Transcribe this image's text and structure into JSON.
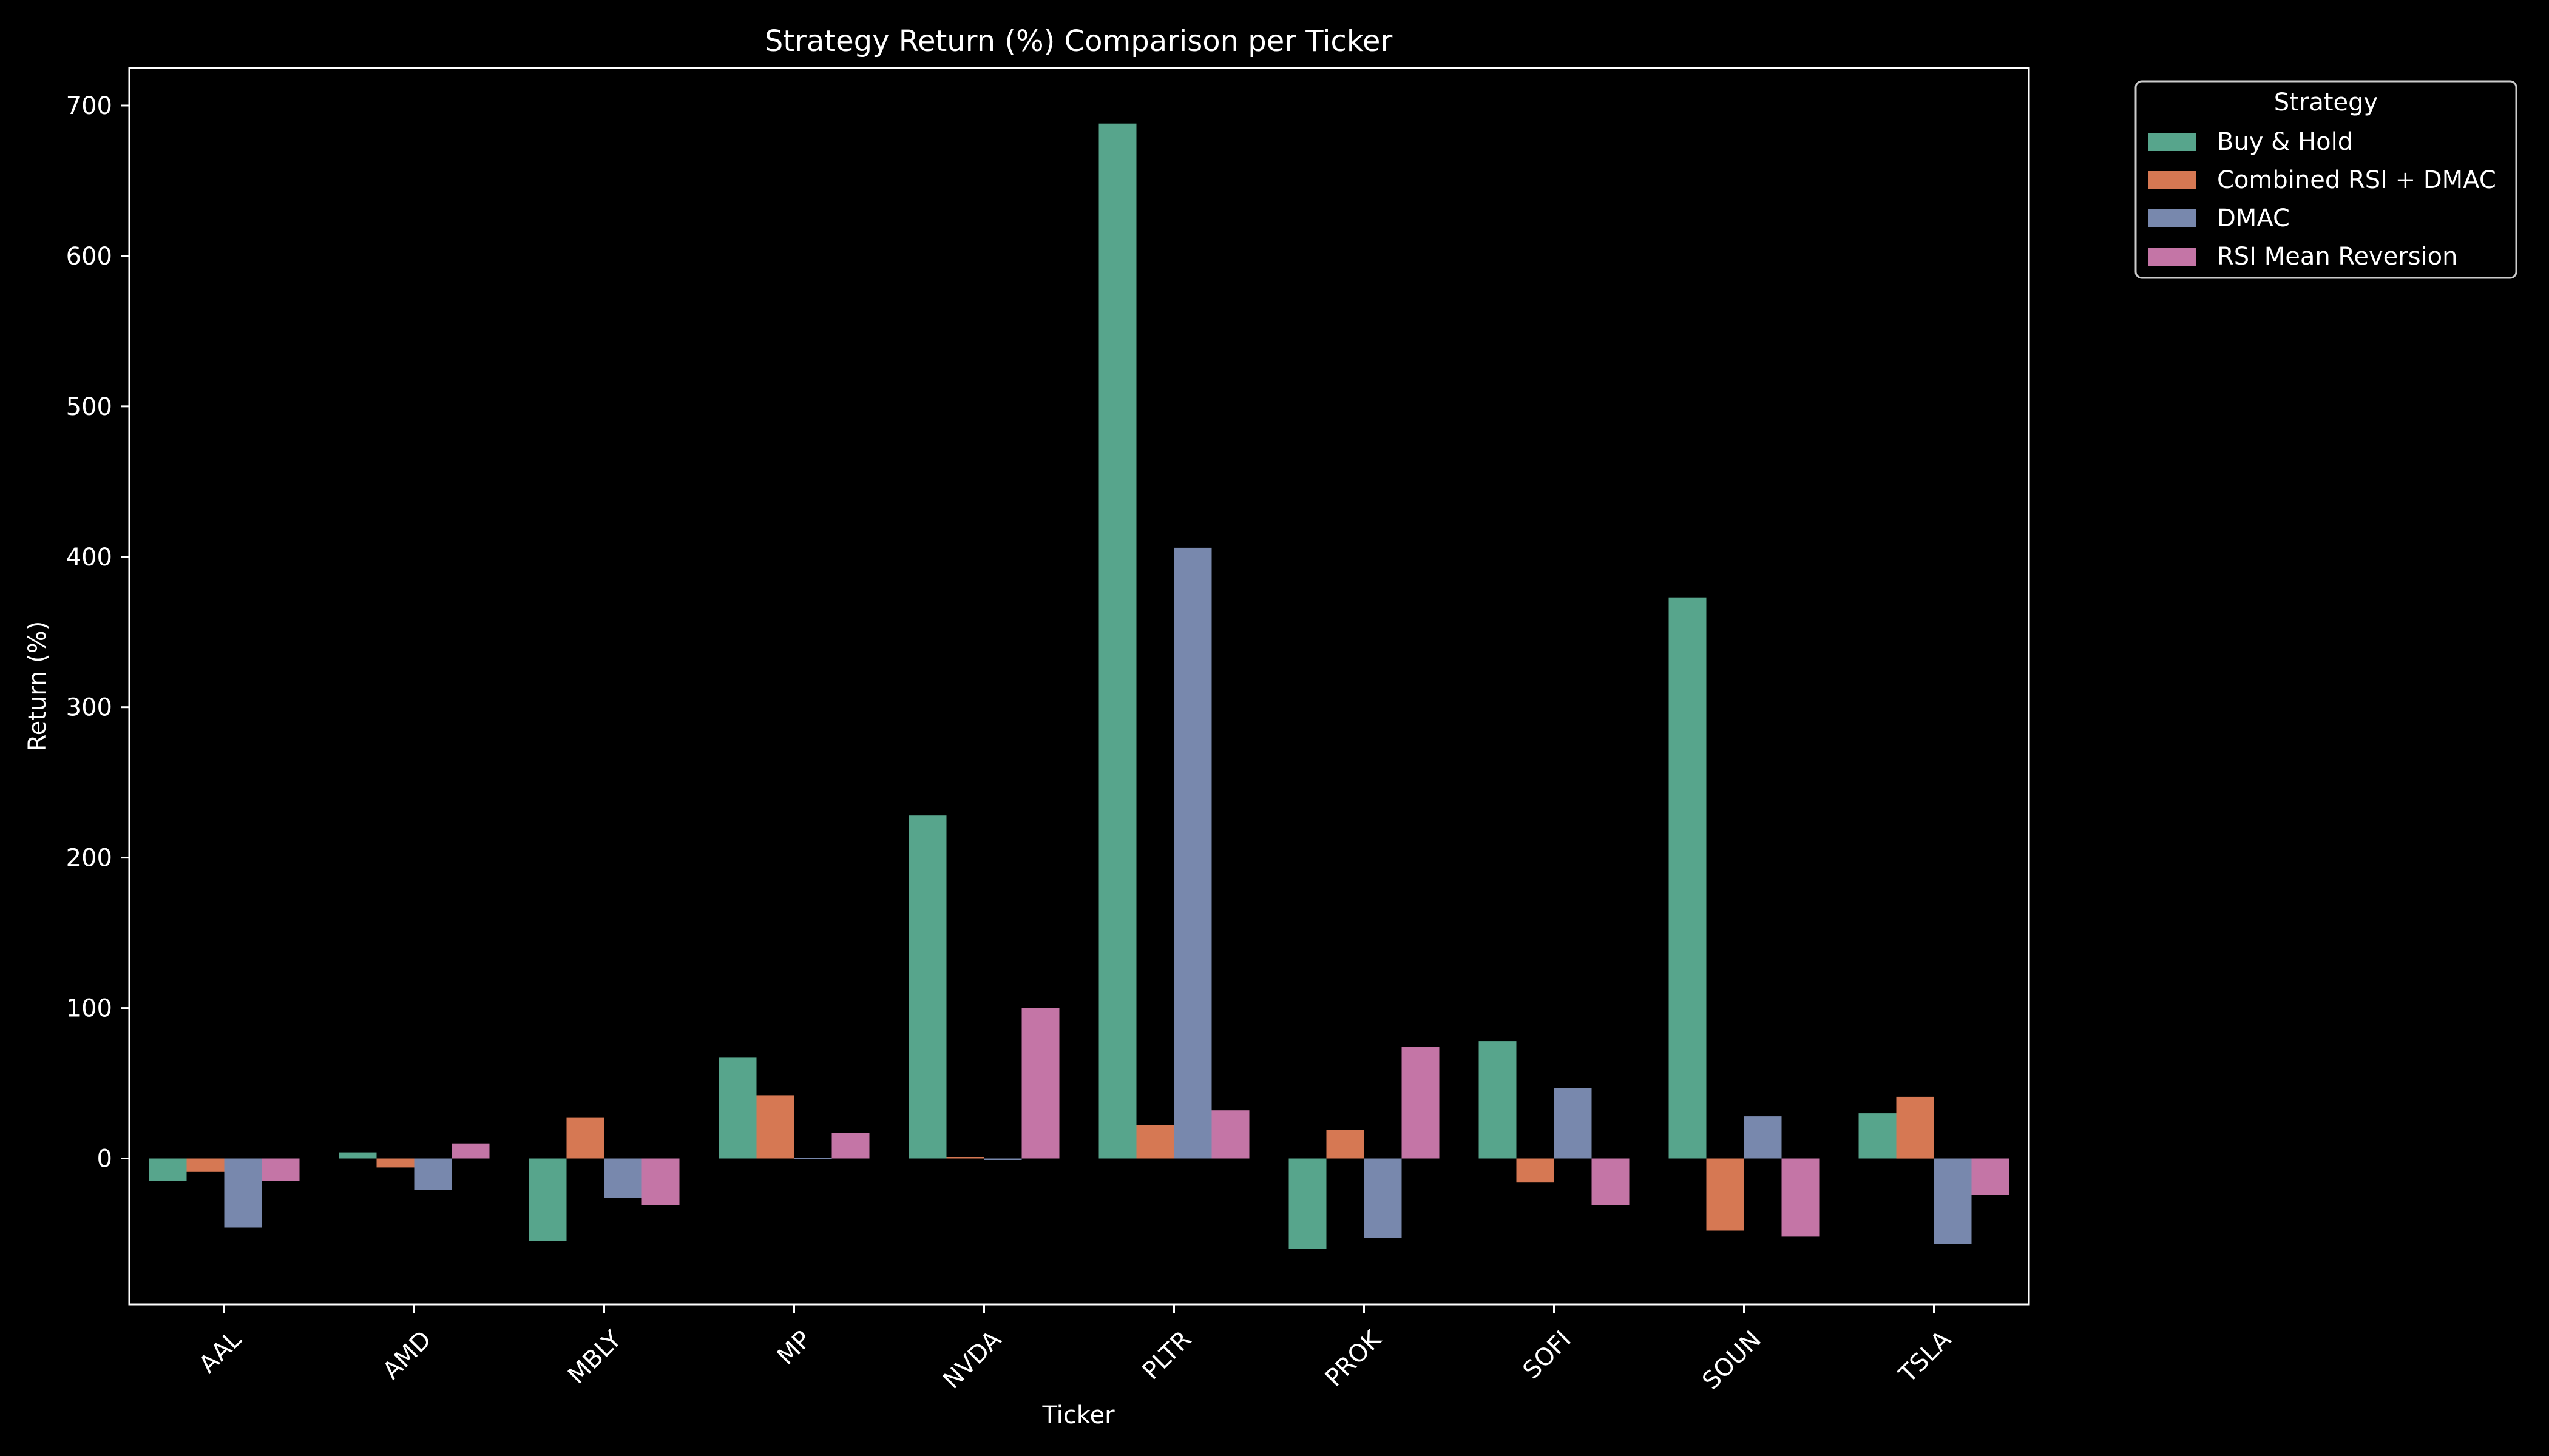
{
  "chart_data": {
    "type": "bar",
    "title": "Strategy Return (%) Comparison per Ticker",
    "xlabel": "Ticker",
    "ylabel": "Return (%)",
    "ylim": [
      -97,
      725
    ],
    "yticks": [
      0,
      100,
      200,
      300,
      400,
      500,
      600,
      700
    ],
    "categories": [
      "AAL",
      "AMD",
      "MBLY",
      "MP",
      "NVDA",
      "PLTR",
      "PROK",
      "SOFI",
      "SOUN",
      "TSLA"
    ],
    "series": [
      {
        "name": "Buy & Hold",
        "color": "#66c2a5",
        "values": [
          -15,
          4,
          -55,
          67,
          228,
          688,
          -60,
          78,
          373,
          30
        ]
      },
      {
        "name": "Combined RSI + DMAC",
        "color": "#fc8d62",
        "values": [
          -9,
          -6,
          27,
          42,
          1,
          22,
          19,
          -16,
          -48,
          41
        ]
      },
      {
        "name": "DMAC",
        "color": "#8da0cb",
        "values": [
          -46,
          -21,
          -26,
          0,
          -1,
          406,
          -53,
          47,
          28,
          -57
        ]
      },
      {
        "name": "RSI Mean Reversion",
        "color": "#e78ac3",
        "values": [
          -15,
          10,
          -31,
          17,
          100,
          32,
          74,
          -31,
          -52,
          -24
        ]
      }
    ],
    "legend": {
      "title": "Strategy",
      "placement": "outside-top-right"
    },
    "grid": false
  }
}
